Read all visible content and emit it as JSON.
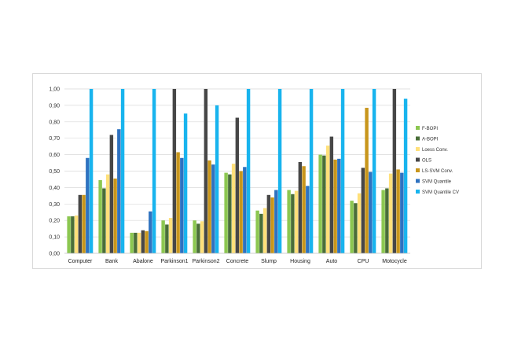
{
  "chart_data": {
    "type": "bar",
    "title": "",
    "xlabel": "",
    "ylabel": "",
    "ylim": [
      0,
      1
    ],
    "yticks": [
      "0,00",
      "0,10",
      "0,20",
      "0,30",
      "0,40",
      "0,50",
      "0,60",
      "0,70",
      "0,80",
      "0,90",
      "1,00"
    ],
    "grid": true,
    "legend_position": "right",
    "categories": [
      "Computer",
      "Bank",
      "Abalone",
      "Parkinson1",
      "Parkinson2",
      "Concrete",
      "Slump",
      "Housing",
      "Auto",
      "CPU",
      "Motocycle"
    ],
    "series": [
      {
        "name": "F-BOPI",
        "color": "#8cc751",
        "values": [
          0.225,
          0.445,
          0.125,
          0.2,
          0.2,
          0.49,
          0.26,
          0.385,
          0.6,
          0.32,
          0.385
        ]
      },
      {
        "name": "A-BOPI",
        "color": "#4a6e38",
        "values": [
          0.225,
          0.395,
          0.125,
          0.175,
          0.18,
          0.48,
          0.24,
          0.36,
          0.595,
          0.305,
          0.395
        ]
      },
      {
        "name": "Loess Conv.",
        "color": "#ffe07a",
        "values": [
          0.23,
          0.48,
          0.125,
          0.215,
          0.195,
          0.545,
          0.275,
          0.38,
          0.655,
          0.365,
          0.485
        ]
      },
      {
        "name": "OLS",
        "color": "#474747",
        "values": [
          0.355,
          0.72,
          0.14,
          1.0,
          1.0,
          0.825,
          0.355,
          0.555,
          0.71,
          0.52,
          1.0
        ]
      },
      {
        "name": "LS-SVM Conv.",
        "color": "#c8961c",
        "values": [
          0.355,
          0.455,
          0.135,
          0.615,
          0.565,
          0.5,
          0.34,
          0.53,
          0.57,
          0.885,
          0.51
        ]
      },
      {
        "name": "SVM Quantile",
        "color": "#2e72c0",
        "values": [
          0.58,
          0.755,
          0.255,
          0.58,
          0.54,
          0.525,
          0.385,
          0.41,
          0.575,
          0.495,
          0.49
        ]
      },
      {
        "name": "SVM Quantile CV",
        "color": "#18b4ee",
        "values": [
          1.0,
          1.0,
          1.0,
          0.85,
          0.9,
          1.0,
          1.0,
          1.0,
          1.0,
          1.0,
          0.94
        ]
      }
    ]
  }
}
